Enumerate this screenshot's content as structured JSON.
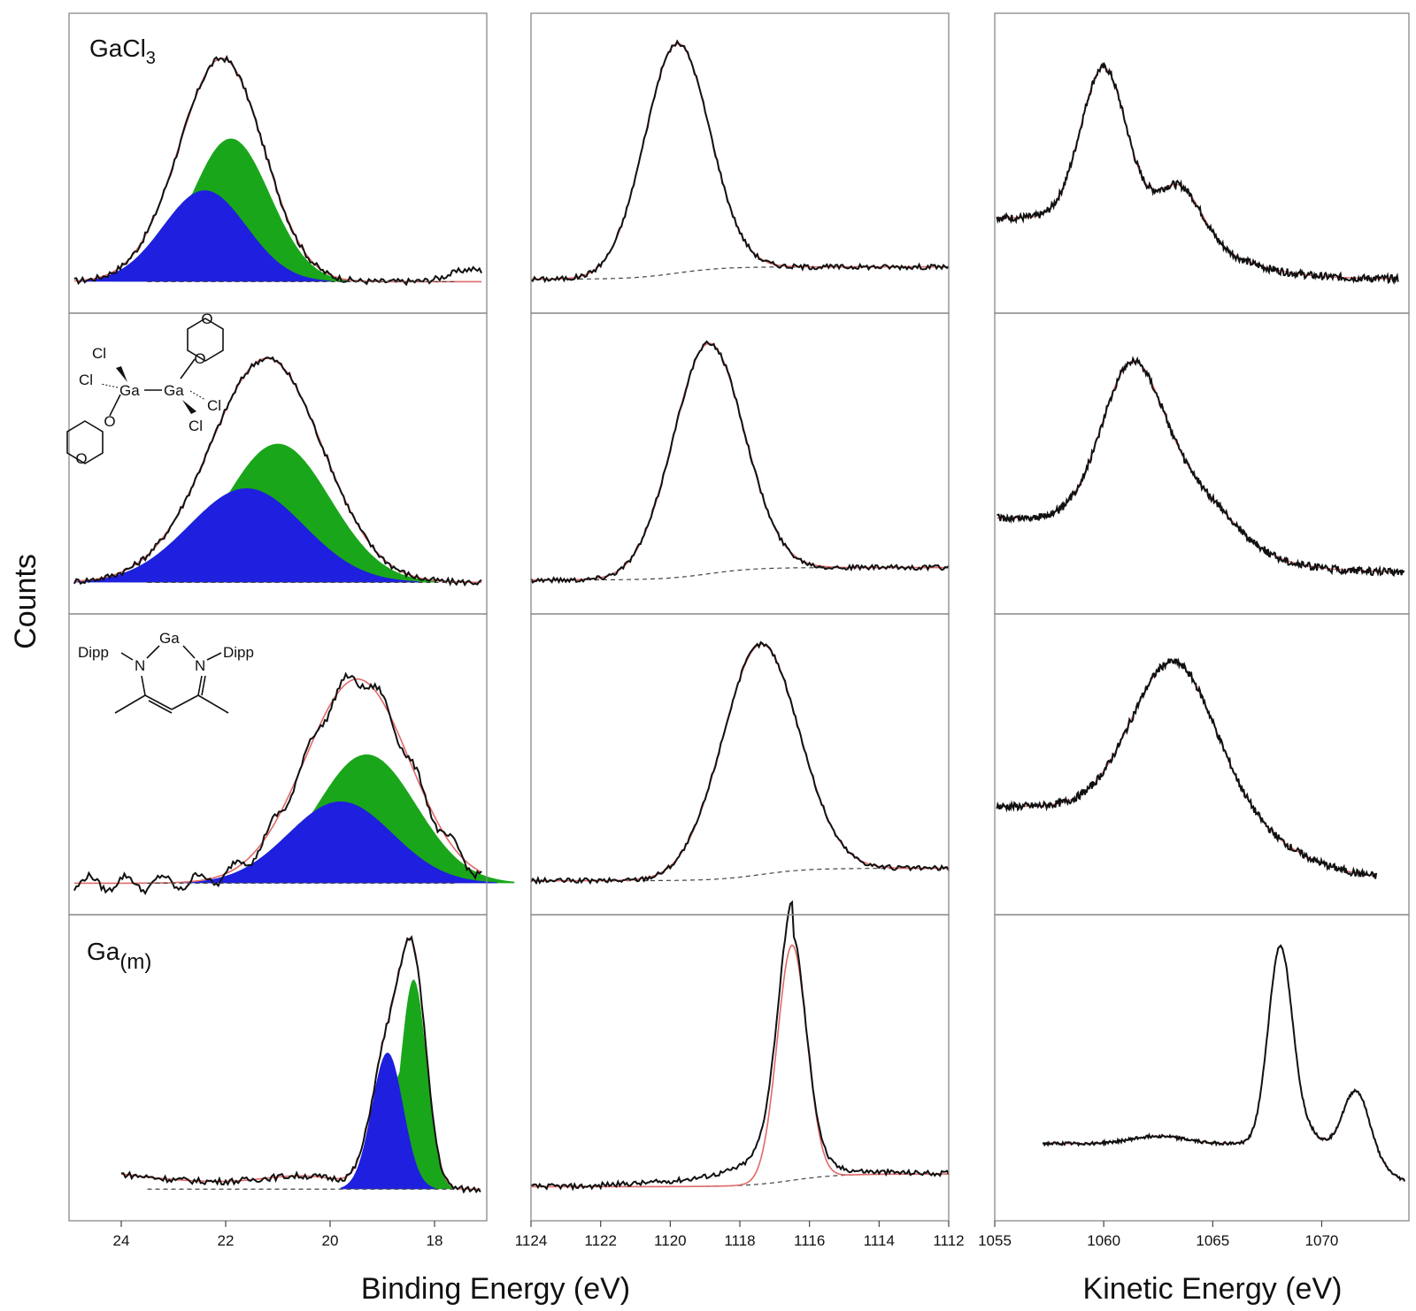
{
  "figure": {
    "y_axis_label": "Counts",
    "x_axis_label_binding": "Binding Energy (eV)",
    "x_axis_label_kinetic": "Kinetic Energy (eV)",
    "rows": [
      {
        "label_main": "GaCl",
        "label_sub": "3"
      },
      {
        "label_main": "",
        "label_sub": "",
        "molecule": "Ga2Cl4 dioxane complex",
        "atoms": {
          "cl": "Cl",
          "ga": "Ga",
          "o": "O"
        }
      },
      {
        "label_main": "",
        "label_sub": "",
        "molecule": "Ga(I) beta-diketiminate",
        "atoms": {
          "dipp": "Dipp",
          "n": "N",
          "ga": "Ga"
        }
      },
      {
        "label_main": "Ga",
        "label_sub": "(m)"
      }
    ],
    "colors": {
      "measured": "#111111",
      "fit_envelope": "#e06a6a",
      "component_1": "#1f1fe0",
      "component_2": "#1aa61a",
      "background": "#444444"
    }
  },
  "chart_data": [
    {
      "type": "area",
      "column": 1,
      "xlabel": "Binding Energy (eV)",
      "xlim": [
        25,
        17
      ],
      "xticks": [
        "24",
        "22",
        "20",
        "18"
      ],
      "ylabel": "Counts",
      "panels": [
        {
          "row": 1,
          "components": [
            {
              "name": "",
              "center": 22.4,
              "height": 0.37,
              "width": 0.8
            },
            {
              "name": "",
              "center": 21.9,
              "height": 0.58,
              "width": 0.75
            }
          ],
          "envelope_peak_x": 22.1
        },
        {
          "row": 2,
          "components": [
            {
              "name": "",
              "center": 21.6,
              "height": 0.38,
              "width": 1.1
            },
            {
              "name": "",
              "center": 21.0,
              "height": 0.56,
              "width": 1.0
            }
          ],
          "envelope_peak_x": 21.2
        },
        {
          "row": 3,
          "components": [
            {
              "name": "",
              "center": 19.8,
              "height": 0.33,
              "width": 1.0
            },
            {
              "name": "",
              "center": 19.3,
              "height": 0.52,
              "width": 0.95
            }
          ],
          "envelope_peak_x": 19.4
        },
        {
          "row": 4,
          "components": [
            {
              "name": "",
              "center": 18.9,
              "height": 0.54,
              "width": 0.3
            },
            {
              "name": "",
              "center": 18.4,
              "height": 0.83,
              "width": 0.25
            }
          ],
          "envelope_peak_x": 18.5
        }
      ]
    },
    {
      "type": "line",
      "column": 2,
      "xlabel": "Binding Energy (eV)",
      "xlim": [
        1124,
        1112
      ],
      "xticks": [
        "1124",
        "1122",
        "1120",
        "1118",
        "1116",
        "1114",
        "1112"
      ],
      "panels": [
        {
          "row": 1,
          "peak_x": 1119.8,
          "fwhm": 2.2
        },
        {
          "row": 2,
          "peak_x": 1118.9,
          "fwhm": 2.4
        },
        {
          "row": 3,
          "peak_x": 1117.4,
          "fwhm": 2.6
        },
        {
          "row": 4,
          "peak_x": 1116.5,
          "fwhm": 1.0
        }
      ]
    },
    {
      "type": "line",
      "column": 3,
      "xlabel": "Kinetic Energy (eV)",
      "xlim": [
        1055,
        1074
      ],
      "xticks": [
        "1055",
        "1060",
        "1065",
        "1070"
      ],
      "panels": [
        {
          "row": 1,
          "peak_x": 1060.0,
          "shoulder_x": 1063.5
        },
        {
          "row": 2,
          "peak_x": 1061.3
        },
        {
          "row": 3,
          "peak_x": 1063.2
        },
        {
          "row": 4,
          "peak_x": 1068.1,
          "satellite_x": 1071.6
        }
      ]
    }
  ]
}
